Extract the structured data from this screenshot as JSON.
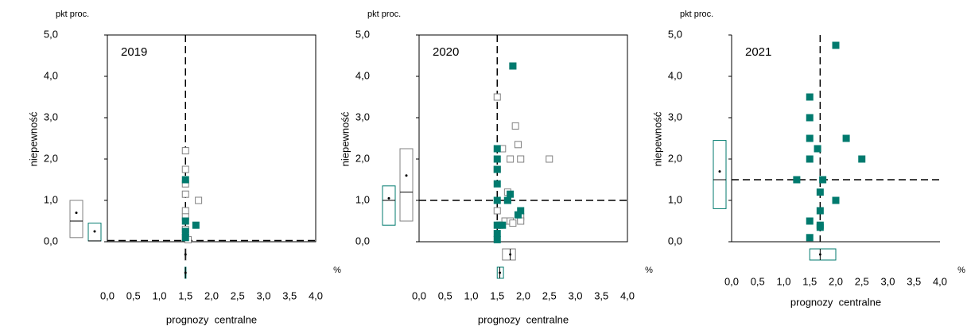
{
  "chart_data": [
    {
      "type": "scatter",
      "label": "2019",
      "y_unit": "pkt proc.",
      "ylabel": "niepewność",
      "xlabel": "prognozy  centralne",
      "x_unit": "%",
      "frame": true,
      "xlim": [
        0,
        4
      ],
      "ylim": [
        0,
        5
      ],
      "xticks": [
        {
          "value": 0,
          "label": "0,0"
        },
        {
          "value": 0.5,
          "label": "0,5"
        },
        {
          "value": 1,
          "label": "1,0"
        },
        {
          "value": 1.5,
          "label": "1,5"
        },
        {
          "value": 2,
          "label": "2,0"
        },
        {
          "value": 2.5,
          "label": "2,5"
        },
        {
          "value": 3,
          "label": "3,0"
        },
        {
          "value": 3.5,
          "label": "3,5"
        },
        {
          "value": 4,
          "label": "4,0"
        }
      ],
      "yticks": [
        {
          "value": 0,
          "label": "0,0"
        },
        {
          "value": 1,
          "label": "1,0"
        },
        {
          "value": 2,
          "label": "2,0"
        },
        {
          "value": 3,
          "label": "3,0"
        },
        {
          "value": 4,
          "label": "4,0"
        },
        {
          "value": 5,
          "label": "5,0"
        }
      ],
      "refline": {
        "x": 1.5,
        "y": 0.03
      },
      "series": [
        {
          "color": "#808080",
          "marker": "hollow",
          "x": [
            1.5,
            1.5,
            1.5,
            1.5,
            1.5,
            1.5,
            1.5,
            1.5,
            1.55,
            1.75
          ],
          "y": [
            2.2,
            1.75,
            1.4,
            1.15,
            0.75,
            0.6,
            0.3,
            0.1,
            0.05,
            1.0
          ]
        },
        {
          "color": "#007a6e",
          "marker": "filled",
          "x": [
            1.5,
            1.5,
            1.5,
            1.5,
            1.7
          ],
          "y": [
            1.5,
            0.5,
            0.25,
            0.1,
            0.4
          ]
        }
      ],
      "boxes_y": [
        {
          "color": "#007a6e",
          "low": 0.02,
          "high": 0.45,
          "median": 0.02,
          "mean": 0.25
        },
        {
          "color": "#808080",
          "low": 0.1,
          "high": 1.0,
          "median": 0.5,
          "mean": 0.7
        }
      ],
      "boxes_x": [
        {
          "color": "#808080",
          "low": 1.49,
          "high": 1.51,
          "median": 1.5,
          "mean": 1.5
        },
        {
          "color": "#007a6e",
          "low": 1.49,
          "high": 1.51,
          "median": 1.5,
          "mean": 1.5
        }
      ]
    },
    {
      "type": "scatter",
      "label": "2020",
      "y_unit": "pkt proc.",
      "ylabel": "niepewność",
      "xlabel": "prognozy  centralne",
      "x_unit": "%",
      "frame": true,
      "xlim": [
        0,
        4
      ],
      "ylim": [
        0,
        5
      ],
      "xticks": [
        {
          "value": 0,
          "label": "0,0"
        },
        {
          "value": 0.5,
          "label": "0,5"
        },
        {
          "value": 1,
          "label": "1,0"
        },
        {
          "value": 1.5,
          "label": "1,5"
        },
        {
          "value": 2,
          "label": "2,0"
        },
        {
          "value": 2.5,
          "label": "2,5"
        },
        {
          "value": 3,
          "label": "3,0"
        },
        {
          "value": 3.5,
          "label": "3,5"
        },
        {
          "value": 4,
          "label": "4,0"
        }
      ],
      "yticks": [
        {
          "value": 0,
          "label": "0,0"
        },
        {
          "value": 1,
          "label": "1,0"
        },
        {
          "value": 2,
          "label": "2,0"
        },
        {
          "value": 3,
          "label": "3,0"
        },
        {
          "value": 4,
          "label": "4,0"
        },
        {
          "value": 5,
          "label": "5,0"
        }
      ],
      "refline": {
        "x": 1.5,
        "y": 1.0
      },
      "series": [
        {
          "color": "#808080",
          "marker": "hollow",
          "x": [
            1.5,
            1.8,
            1.6,
            1.85,
            1.9,
            1.75,
            1.95,
            2.5,
            1.5,
            1.7,
            1.7,
            1.5,
            1.65,
            1.75,
            1.8,
            1.95,
            1.95,
            1.55
          ],
          "y": [
            3.5,
            4.25,
            2.25,
            2.8,
            2.35,
            2.0,
            2.0,
            2.0,
            1.75,
            1.2,
            1.0,
            0.75,
            0.5,
            0.5,
            0.45,
            0.6,
            0.5,
            0.4
          ]
        },
        {
          "color": "#007a6e",
          "marker": "filled",
          "x": [
            1.8,
            1.5,
            1.5,
            1.5,
            1.5,
            1.75,
            1.7,
            1.5,
            1.95,
            1.9,
            1.5,
            1.6,
            1.5,
            1.5
          ],
          "y": [
            4.25,
            2.25,
            2.0,
            1.75,
            1.4,
            1.15,
            1.0,
            1.0,
            0.75,
            0.65,
            0.4,
            0.4,
            0.2,
            0.05
          ]
        }
      ],
      "boxes_y": [
        {
          "color": "#007a6e",
          "low": 0.4,
          "high": 1.35,
          "median": 1.0,
          "mean": 1.05
        },
        {
          "color": "#808080",
          "low": 0.5,
          "high": 2.25,
          "median": 1.2,
          "mean": 1.6
        }
      ],
      "boxes_x": [
        {
          "color": "#808080",
          "low": 1.6,
          "high": 1.85,
          "median": 1.75,
          "mean": 1.75
        },
        {
          "color": "#007a6e",
          "low": 1.5,
          "high": 1.62,
          "median": 1.55,
          "mean": 1.55
        }
      ]
    },
    {
      "type": "scatter",
      "label": "2021",
      "y_unit": "pkt proc.",
      "ylabel": "niepewność",
      "xlabel": "prognozy  centralne",
      "x_unit": "%",
      "frame": false,
      "xlim": [
        0,
        4
      ],
      "ylim": [
        0,
        5
      ],
      "xticks": [
        {
          "value": 0,
          "label": "0,0"
        },
        {
          "value": 0.5,
          "label": "0,5"
        },
        {
          "value": 1,
          "label": "1,0"
        },
        {
          "value": 1.5,
          "label": "1,5"
        },
        {
          "value": 2,
          "label": "2,0"
        },
        {
          "value": 2.5,
          "label": "2,5"
        },
        {
          "value": 3,
          "label": "3,0"
        },
        {
          "value": 3.5,
          "label": "3,5"
        },
        {
          "value": 4,
          "label": "4,0"
        }
      ],
      "yticks": [
        {
          "value": 0,
          "label": "0,0"
        },
        {
          "value": 1,
          "label": "1,0"
        },
        {
          "value": 2,
          "label": "2,0"
        },
        {
          "value": 3,
          "label": "3,0"
        },
        {
          "value": 4,
          "label": "4,0"
        },
        {
          "value": 5,
          "label": "5,0"
        }
      ],
      "refline": {
        "x": 1.7,
        "y": 1.5
      },
      "series": [
        {
          "color": "#007a6e",
          "marker": "filled",
          "x": [
            2.0,
            1.5,
            1.5,
            1.5,
            2.2,
            1.65,
            1.5,
            2.5,
            1.25,
            1.75,
            1.7,
            2.0,
            1.7,
            1.5,
            1.7,
            1.7,
            1.5
          ],
          "y": [
            4.75,
            3.5,
            3.0,
            2.5,
            2.5,
            2.25,
            2.0,
            2.0,
            1.5,
            1.5,
            1.2,
            1.0,
            0.75,
            0.5,
            0.4,
            0.35,
            0.1
          ]
        }
      ],
      "boxes_y": [
        {
          "color": "#007a6e",
          "low": 0.8,
          "high": 2.45,
          "median": 1.5,
          "mean": 1.7
        }
      ],
      "boxes_x": [
        {
          "color": "#007a6e",
          "low": 1.5,
          "high": 2.0,
          "median": 1.7,
          "mean": 1.7
        }
      ]
    }
  ]
}
